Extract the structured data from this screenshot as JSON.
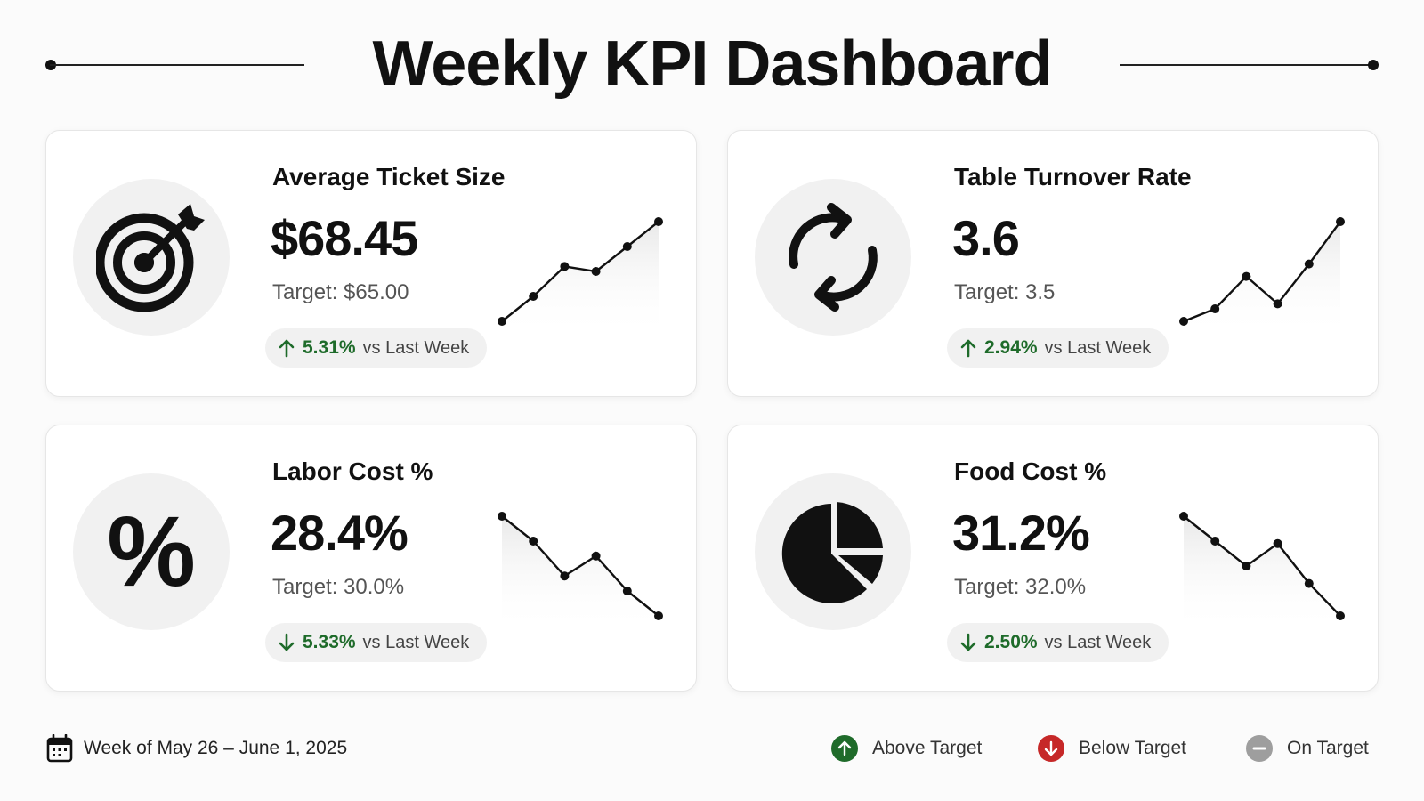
{
  "header": {
    "title": "Weekly KPI Dashboard"
  },
  "cards": [
    {
      "icon": "target-icon",
      "title": "Average Ticket Size",
      "value": "$68.45",
      "target": "Target: $65.00",
      "change_pct": "5.31%",
      "change_label": "vs Last Week",
      "direction": "up",
      "trend": [
        1,
        2,
        3.2,
        3.0,
        4.0,
        5.0
      ]
    },
    {
      "icon": "refresh-cycle-icon",
      "title": "Table Turnover Rate",
      "value": "3.6",
      "target": "Target: 3.5",
      "change_pct": "2.94%",
      "change_label": "vs Last Week",
      "direction": "up",
      "trend": [
        1.0,
        1.5,
        2.8,
        1.7,
        3.3,
        5.0
      ]
    },
    {
      "icon": "percent-icon",
      "title": "Labor Cost %",
      "value": "28.4%",
      "target": "Target: 30.0%",
      "change_pct": "5.33%",
      "change_label": "vs Last Week",
      "direction": "down",
      "trend": [
        5.0,
        4.0,
        2.6,
        3.4,
        2.0,
        1.0
      ]
    },
    {
      "icon": "pie-chart-icon",
      "title": "Food Cost %",
      "value": "31.2%",
      "target": "Target: 32.0%",
      "change_pct": "2.50%",
      "change_label": "vs Last Week",
      "direction": "down",
      "trend": [
        5.0,
        4.0,
        3.0,
        3.9,
        2.3,
        1.0
      ]
    }
  ],
  "footer": {
    "week_label": "Week of May 26 – June 1, 2025",
    "legend": {
      "above": "Above Target",
      "below": "Below Target",
      "on": "On Target"
    }
  },
  "colors": {
    "positive": "#1e6b2a",
    "above_dot": "#1f6b2a",
    "below_dot": "#c62828",
    "on_dot": "#9e9e9e",
    "pill_bg": "#f1f1f1",
    "icon_bg": "#f1f1f1"
  }
}
